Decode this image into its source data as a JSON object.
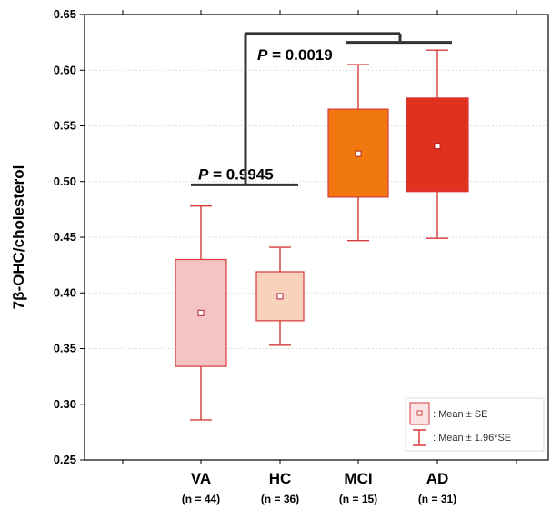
{
  "chart_data": {
    "type": "box",
    "ylabel": "7β-OHC/cholesterol",
    "ylim": [
      0.25,
      0.65
    ],
    "yticks": [
      0.25,
      0.3,
      0.35,
      0.4,
      0.45,
      0.5,
      0.55,
      0.6,
      0.65
    ],
    "ytick_labels": [
      "0.25",
      "0.30",
      "0.35",
      "0.40",
      "0.45",
      "0.50",
      "0.55",
      "0.60",
      "0.65"
    ],
    "grid": true,
    "categories": [
      "VA",
      "HC",
      "MCI",
      "AD"
    ],
    "n_labels": [
      "(n = 44)",
      "(n = 36)",
      "(n = 15)",
      "(n = 31)"
    ],
    "groups": [
      {
        "name": "VA",
        "mean": 0.382,
        "se_low": 0.334,
        "se_high": 0.43,
        "ci_low": 0.286,
        "ci_high": 0.478,
        "fill": "#f4c4c4",
        "stroke": "#d93a3a"
      },
      {
        "name": "HC",
        "mean": 0.397,
        "se_low": 0.375,
        "se_high": 0.419,
        "ci_low": 0.353,
        "ci_high": 0.441,
        "fill": "#f9d2bc",
        "stroke": "#d93a3a"
      },
      {
        "name": "MCI",
        "mean": 0.525,
        "se_low": 0.486,
        "se_high": 0.565,
        "ci_low": 0.447,
        "ci_high": 0.605,
        "fill": "#f0780f",
        "stroke": "#d93a3a"
      },
      {
        "name": "AD",
        "mean": 0.532,
        "se_low": 0.491,
        "se_high": 0.575,
        "ci_low": 0.449,
        "ci_high": 0.618,
        "fill": "#e0301e",
        "stroke": "#d93a3a"
      }
    ],
    "annotations": [
      {
        "text_italic": "P",
        "text": " = 0.9945",
        "from": "VA",
        "to": "HC",
        "level": 0.497
      },
      {
        "text_italic": "P",
        "text": " = 0.0019",
        "level_low": 0.625,
        "level_high": 0.633
      }
    ],
    "legend": {
      "position": "bottom-right",
      "items": [
        ": Mean ± SE",
        ": Mean ± 1.96*SE"
      ]
    }
  }
}
